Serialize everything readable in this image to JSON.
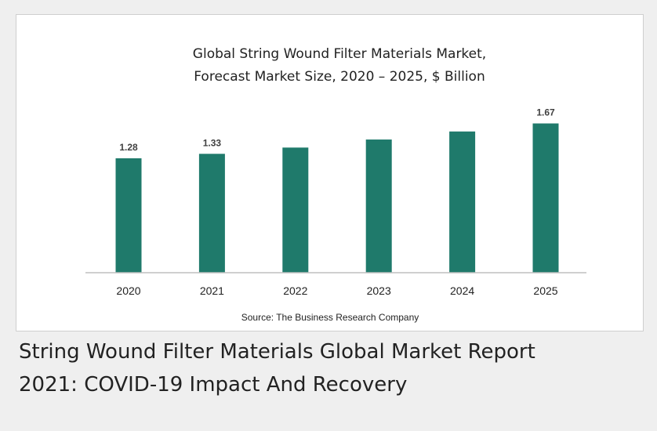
{
  "colors": {
    "bar": "#1f7a6b",
    "axis": "#bfbfbf",
    "text": "#222222",
    "label": "#404040"
  },
  "chart_data": {
    "type": "bar",
    "title_lines": [
      "Global String Wound Filter Materials Market,",
      "Forecast Market Size, 2020 – 2025, $ Billion"
    ],
    "categories": [
      "2020",
      "2021",
      "2022",
      "2023",
      "2024",
      "2025"
    ],
    "values": [
      1.28,
      1.33,
      1.4,
      1.49,
      1.58,
      1.67
    ],
    "data_labels": [
      "1.28",
      "1.33",
      "",
      "",
      "",
      "1.67"
    ],
    "ylim": [
      0,
      1.8
    ],
    "grid": false,
    "source": "Source: The Business Research Company"
  },
  "caption": {
    "line1": "String Wound Filter Materials Global Market Report",
    "line2": "2021: COVID-19 Impact And Recovery"
  }
}
